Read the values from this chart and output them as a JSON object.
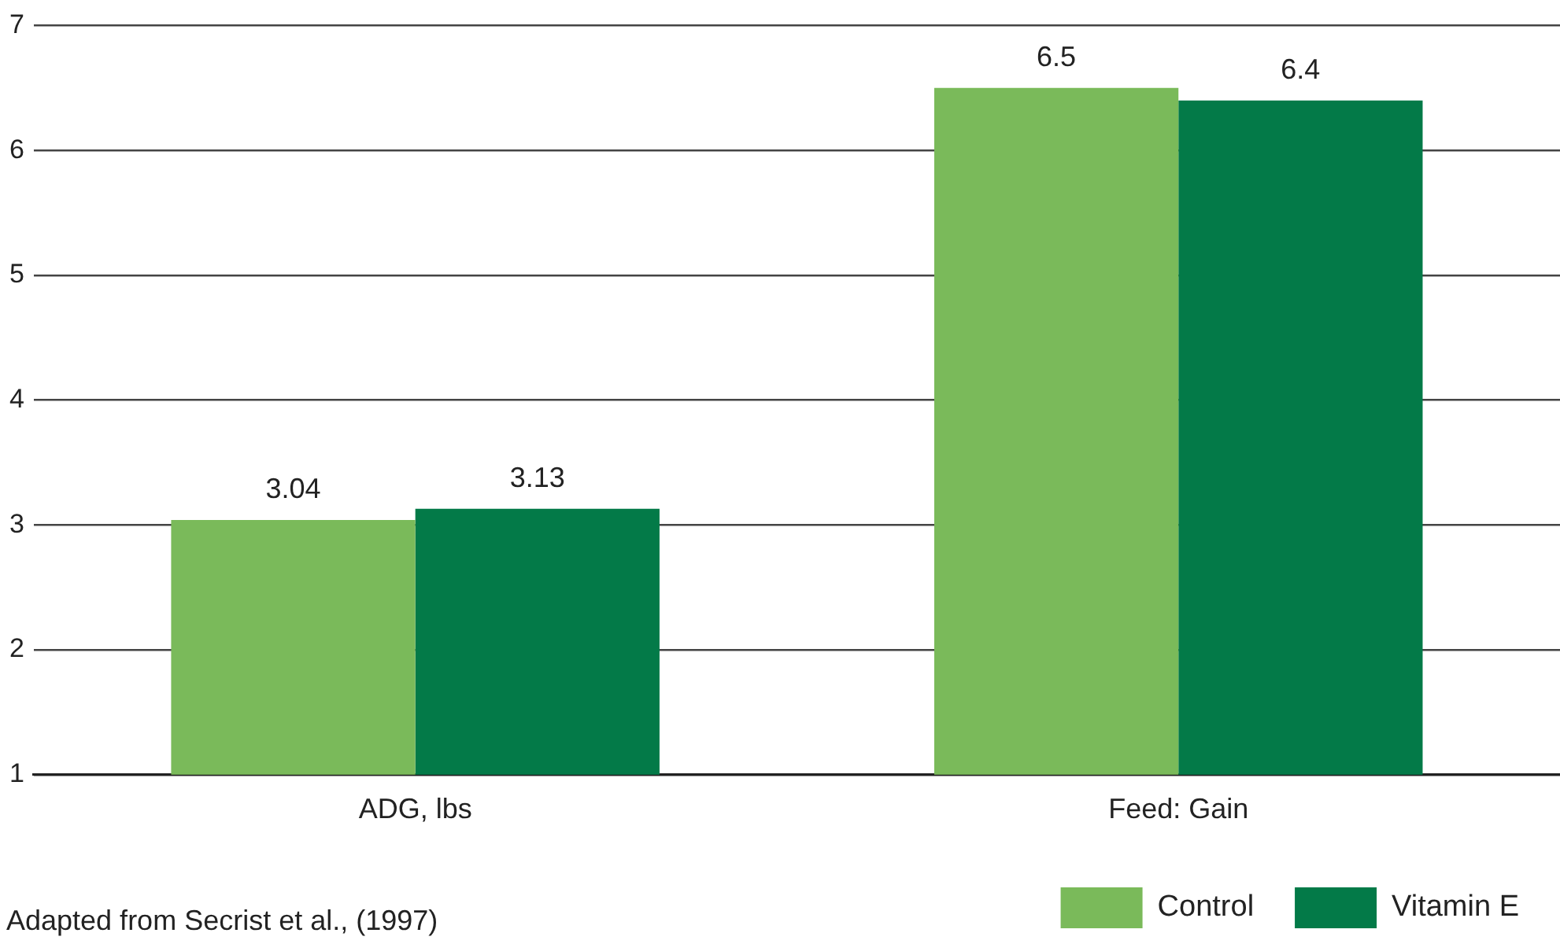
{
  "chart_data": {
    "type": "bar",
    "categories": [
      "ADG, lbs",
      "Feed: Gain"
    ],
    "series": [
      {
        "name": "Control",
        "color": "#7aba5a",
        "values": [
          3.04,
          6.5
        ]
      },
      {
        "name": "Vitamin E",
        "color": "#037a48",
        "values": [
          3.13,
          6.4
        ]
      }
    ],
    "ylim": [
      1,
      7
    ],
    "yticks": [
      1,
      2,
      3,
      4,
      5,
      6,
      7
    ],
    "grid": "y",
    "legend": "bottom right",
    "data_labels": true,
    "annotations": [
      "Adapted from Secrist et al., (1997)"
    ]
  }
}
